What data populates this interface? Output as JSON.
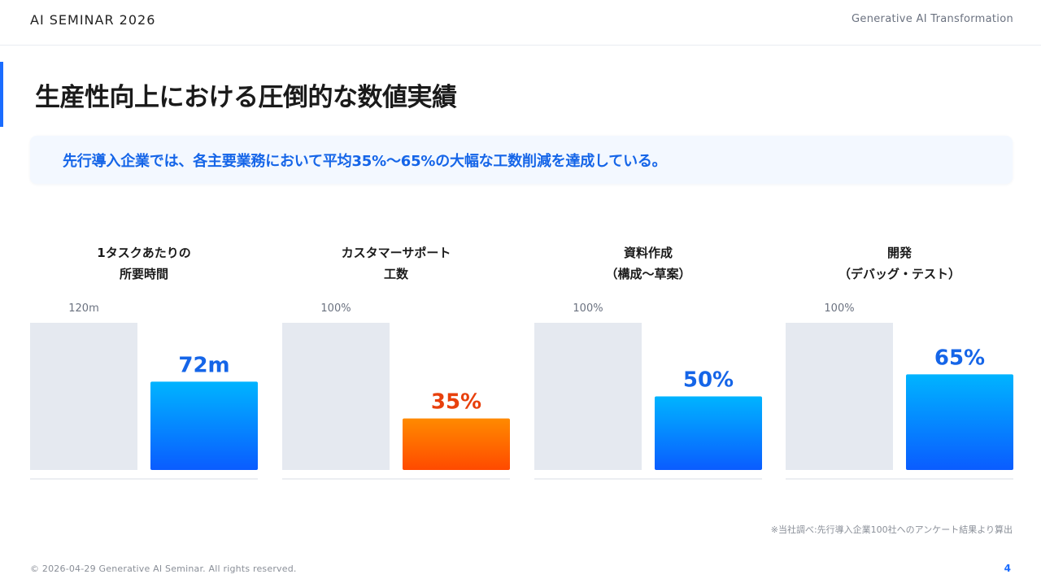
{
  "header": {
    "brand": "AI SEMINAR 2026",
    "subtitle": "Generative AI Transformation"
  },
  "slide": {
    "title": "生産性向上における圧倒的な数値実績",
    "summary": "先行導入企業では、各主要業務において平均35%〜65%の大幅な工数削減を達成している。",
    "footnote": "※当社調べ:先行導入企業100社へのアンケート結果より算出"
  },
  "footer": {
    "copyright": "© 2026-04-29 Generative AI Seminar. All rights reserved.",
    "page_number": "4"
  },
  "colors": {
    "baseline_bar": "#e5e9f0",
    "blue_top": "#00b4ff",
    "blue_bottom": "#0a5cff",
    "orange_top": "#ff8a00",
    "orange_bottom": "#ff4a00",
    "blue_label": "#1565e8",
    "orange_label": "#e8400c"
  },
  "chart_data": [
    {
      "type": "bar",
      "title_lines": [
        "1タスクあたりの",
        "所要時間"
      ],
      "baseline_label": "120m",
      "baseline_value": 120,
      "value": 72,
      "value_label": "72m",
      "highlight": "blue"
    },
    {
      "type": "bar",
      "title_lines": [
        "カスタマーサポート",
        "工数"
      ],
      "baseline_label": "100%",
      "baseline_value": 100,
      "value": 35,
      "value_label": "35%",
      "highlight": "orange"
    },
    {
      "type": "bar",
      "title_lines": [
        "資料作成",
        "（構成〜草案）"
      ],
      "baseline_label": "100%",
      "baseline_value": 100,
      "value": 50,
      "value_label": "50%",
      "highlight": "blue"
    },
    {
      "type": "bar",
      "title_lines": [
        "開発",
        "（デバッグ・テスト）"
      ],
      "baseline_label": "100%",
      "baseline_value": 100,
      "value": 65,
      "value_label": "65%",
      "highlight": "blue"
    }
  ]
}
